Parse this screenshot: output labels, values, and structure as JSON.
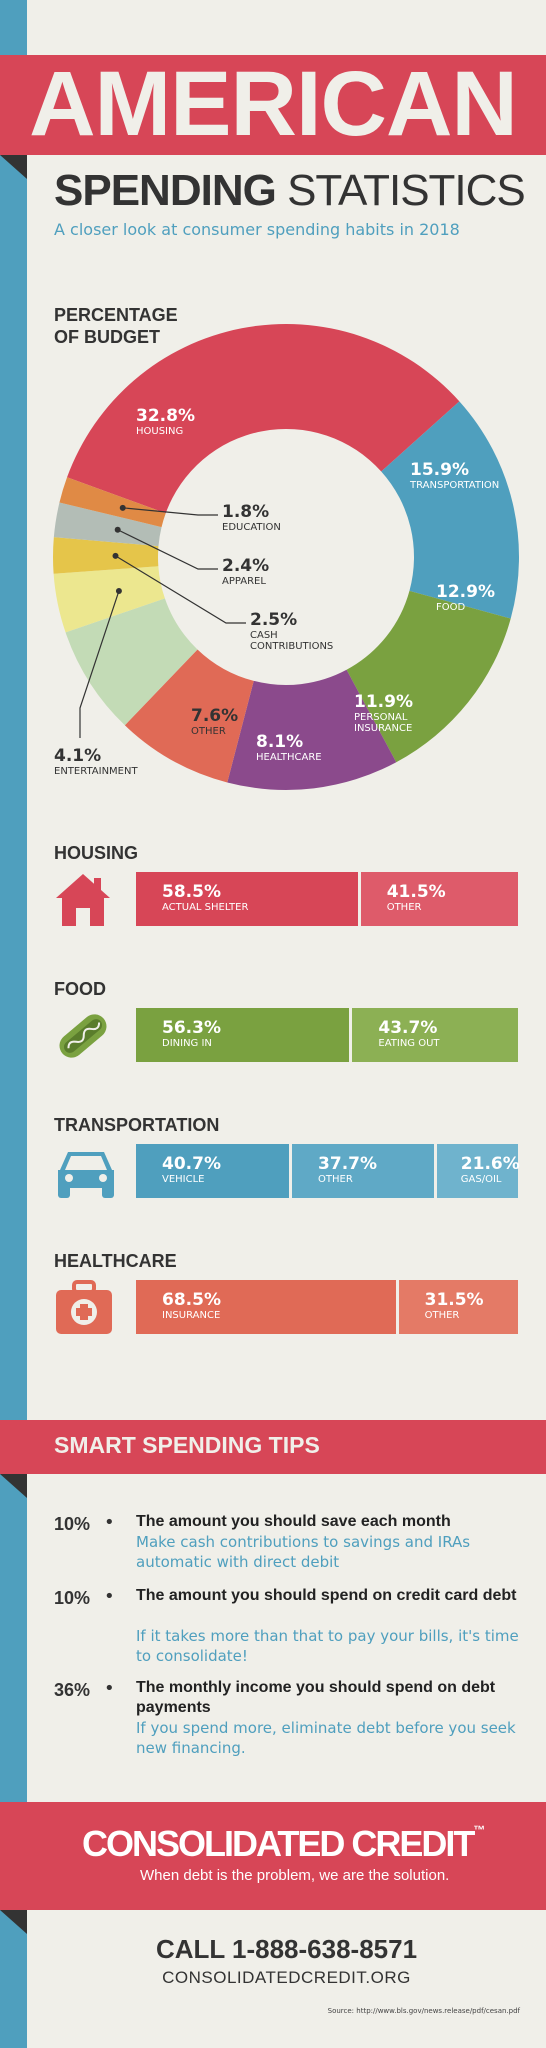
{
  "header": {
    "title_big": "AMERICAN",
    "title_sub_bold": "SPENDING",
    "title_sub_rest": "STATISTICS",
    "tagline": "A closer look at consumer spending habits in 2018"
  },
  "chart_data": [
    {
      "type": "pie",
      "title": "PERCENTAGE OF BUDGET",
      "title_line1": "PERCENTAGE",
      "title_line2": "OF BUDGET",
      "slices": [
        {
          "pct": "32.8%",
          "label": "HOUSING",
          "value": 32.8,
          "color": "#d74657"
        },
        {
          "pct": "15.9%",
          "label": "TRANSPORTATION",
          "value": 15.9,
          "color": "#4f9fbe"
        },
        {
          "pct": "12.9%",
          "label": "FOOD",
          "value": 12.9,
          "color": "#7aa140"
        },
        {
          "pct": "11.9%",
          "label": "PERSONAL INSURANCE",
          "value": 11.9,
          "color": "#8b4a8c"
        },
        {
          "pct": "8.1%",
          "label": "HEALTHCARE",
          "value": 8.1,
          "color": "#e06a56"
        },
        {
          "pct": "7.6%",
          "label": "OTHER",
          "value": 7.6,
          "color": "#c3dbb6"
        },
        {
          "pct": "4.1%",
          "label": "ENTERTAINMENT",
          "value": 4.1,
          "color": "#ece78f"
        },
        {
          "pct": "2.5%",
          "label": "CASH CONTRIBUTIONS",
          "value": 2.5,
          "color": "#e5c54a"
        },
        {
          "pct": "2.4%",
          "label": "APPAREL",
          "value": 2.4,
          "color": "#b3bdb6"
        },
        {
          "pct": "1.8%",
          "label": "EDUCATION",
          "value": 1.8,
          "color": "#e08a45"
        }
      ]
    },
    {
      "type": "bar",
      "title": "HOUSING",
      "color": "#d74657",
      "segments": [
        {
          "pct": "58.5%",
          "label": "ACTUAL SHELTER",
          "value": 58.5,
          "color": "#d74657"
        },
        {
          "pct": "41.5%",
          "label": "OTHER",
          "value": 41.5,
          "color": "#de5b6a"
        }
      ]
    },
    {
      "type": "bar",
      "title": "FOOD",
      "color": "#7aa140",
      "segments": [
        {
          "pct": "56.3%",
          "label": "DINING IN",
          "value": 56.3,
          "color": "#7aa140"
        },
        {
          "pct": "43.7%",
          "label": "EATING OUT",
          "value": 43.7,
          "color": "#8cb054"
        }
      ]
    },
    {
      "type": "bar",
      "title": "TRANSPORTATION",
      "color": "#4f9fbe",
      "segments": [
        {
          "pct": "40.7%",
          "label": "VEHICLE",
          "value": 40.7,
          "color": "#4f9fbe"
        },
        {
          "pct": "37.7%",
          "label": "OTHER",
          "value": 37.7,
          "color": "#5fa9c6"
        },
        {
          "pct": "21.6%",
          "label": "GAS/OIL",
          "value": 21.6,
          "color": "#6fb3cd"
        }
      ]
    },
    {
      "type": "bar",
      "title": "HEALTHCARE",
      "color": "#e06a56",
      "segments": [
        {
          "pct": "68.5%",
          "label": "INSURANCE",
          "value": 68.5,
          "color": "#e06a56"
        },
        {
          "pct": "31.5%",
          "label": "OTHER",
          "value": 31.5,
          "color": "#e47a66"
        }
      ]
    }
  ],
  "tips": {
    "title": "SMART SPENDING TIPS",
    "items": [
      {
        "num": "10%",
        "head": "The amount you should save each month",
        "desc": "Make cash contributions to savings and IRAs automatic with direct debit"
      },
      {
        "num": "10%",
        "head": "The amount you should spend on credit card debt",
        "desc": "If it takes more than that to pay your bills, it's time to consolidate!"
      },
      {
        "num": "36%",
        "head": "The monthly income you should spend on debt payments",
        "desc": "If you spend more, eliminate debt before you seek new financing."
      }
    ]
  },
  "footer": {
    "logo": "CONSOLIDATED CREDIT",
    "tm": "™",
    "slogan": "When debt is the problem, we are the solution.",
    "call": "CALL 1-888-638-8571",
    "site": "CONSOLIDATEDCREDIT.ORG",
    "source": "Source: http://www.bls.gov/news.release/pdf/cesan.pdf"
  },
  "colors": {
    "red": "#d74657",
    "blue": "#4f9fbe",
    "green": "#7aa140",
    "coral": "#e06a56",
    "cream": "#f0efe9",
    "dark": "#333333"
  }
}
